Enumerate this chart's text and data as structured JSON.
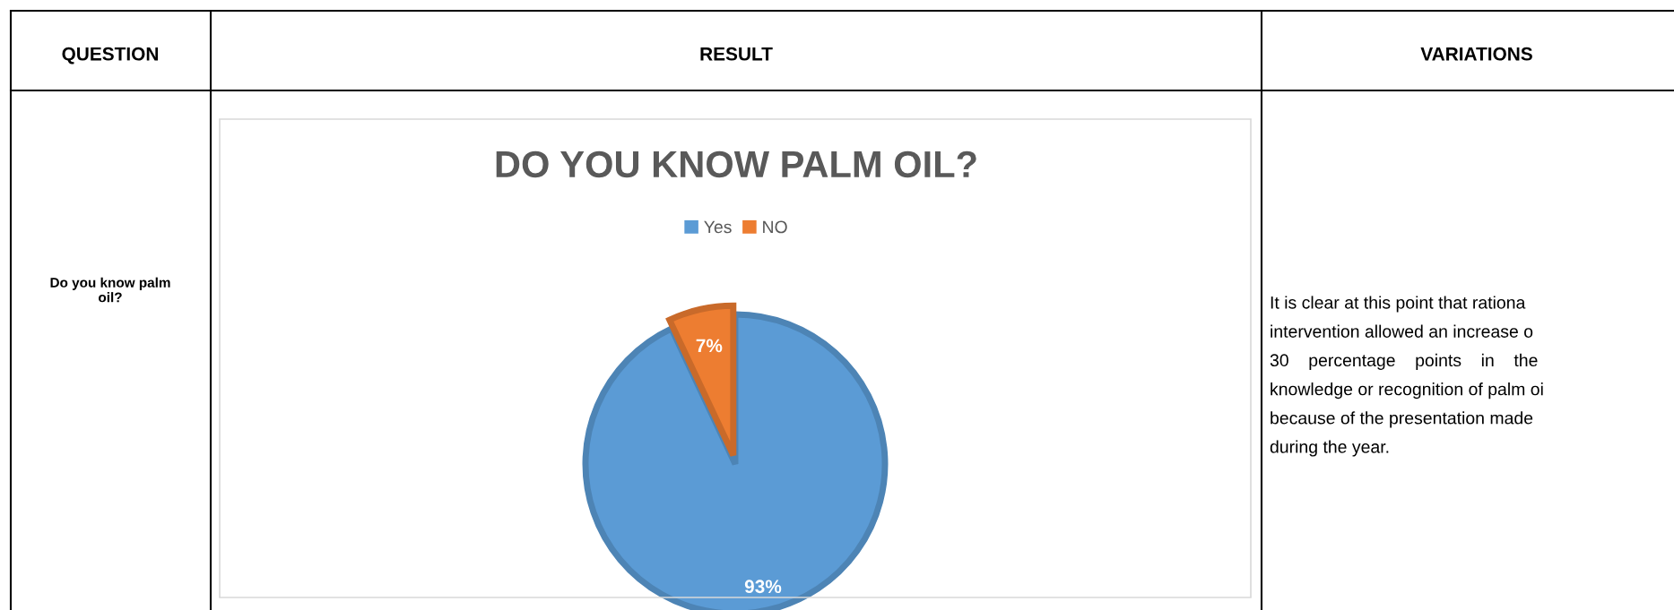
{
  "chart_data": {
    "type": "pie",
    "title": "DO YOU KNOW PALM OIL?",
    "categories": [
      "Yes",
      "NO"
    ],
    "values": [
      93,
      7
    ],
    "colors": [
      "#5b9bd5",
      "#ed7d31"
    ],
    "data_labels": true,
    "value_labels": [
      "93%",
      "7%"
    ],
    "legend": "top",
    "annotations": [
      "QUESTION",
      "RESULT",
      "VARIATIONS",
      "Do you know palm oil?",
      "It is clear at this point that rationa\nintervention allowed an increase o\n30    percentage    points    in    the\nknowledge or recognition of palm oi\nbecause of the presentation made\nduring the year."
    ]
  }
}
